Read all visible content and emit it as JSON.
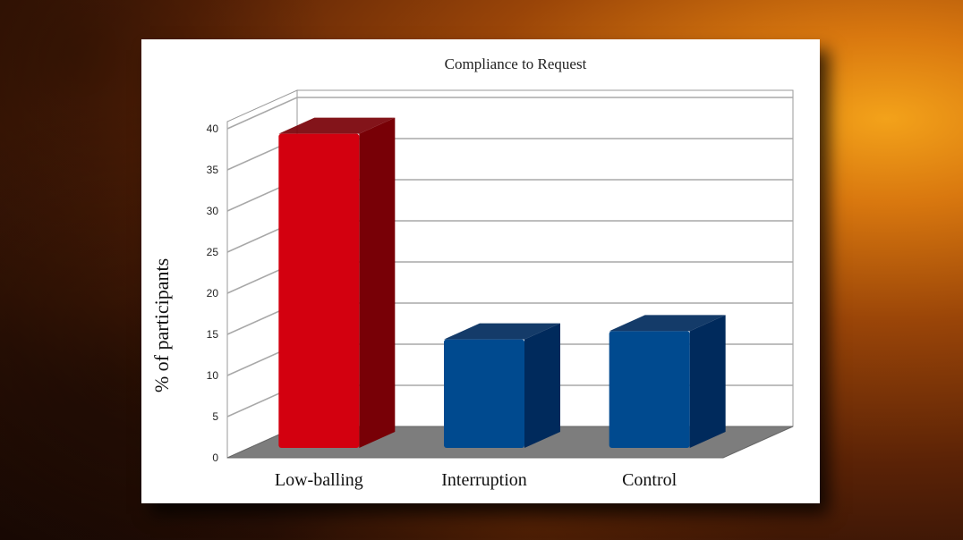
{
  "chart_data": {
    "type": "bar",
    "title": "Compliance to Request",
    "xlabel": "",
    "ylabel": "% of participants",
    "categories": [
      "Low-balling",
      "Interruption",
      "Control"
    ],
    "values": [
      39.5,
      14.5,
      15.5
    ],
    "ylim": [
      0,
      40
    ],
    "yticks": [
      0,
      5,
      10,
      15,
      20,
      25,
      30,
      35,
      40
    ],
    "grid": true,
    "three_d": true,
    "colors": [
      "#d3000f",
      "#004a8f",
      "#004a8f"
    ],
    "side_colors": [
      "#780006",
      "#002a5c",
      "#002a5c"
    ]
  }
}
